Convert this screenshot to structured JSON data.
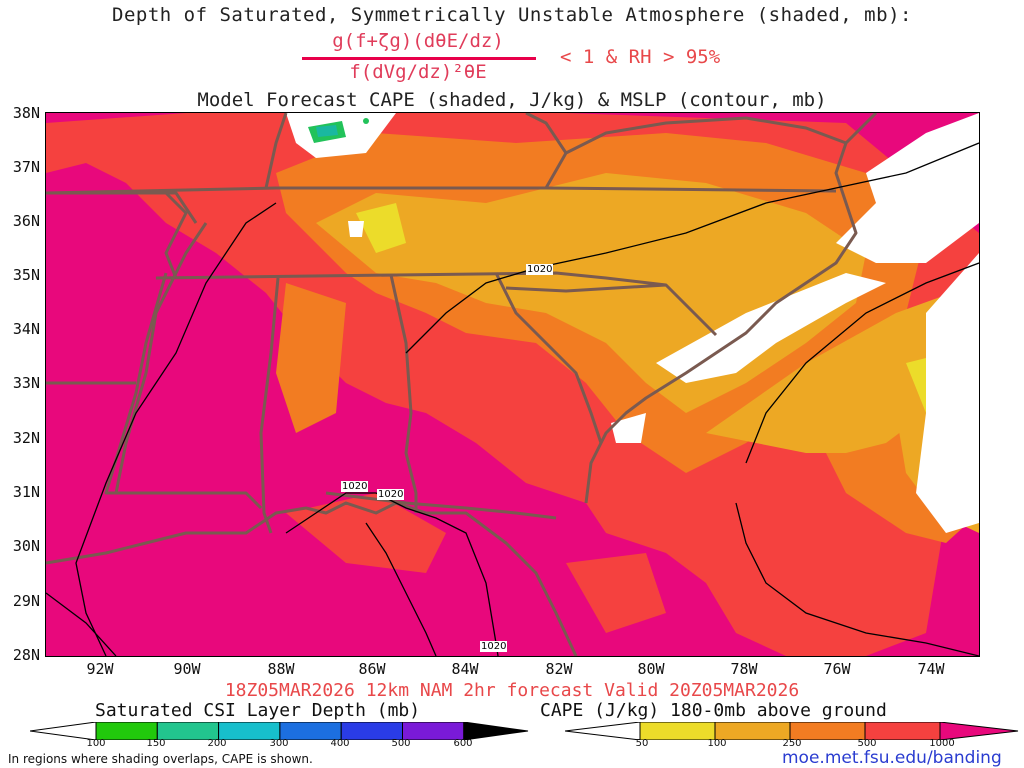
{
  "title": {
    "line1": "Depth of Saturated, Symmetrically Unstable Atmosphere (shaded, mb):",
    "formula_numerator": "g(f+ζg)(dθE/dz)",
    "formula_denominator": "f(dVg/dz)²θE",
    "formula_condition": "< 1 & RH > 95%",
    "line2": "Model Forecast CAPE (shaded, J/kg) & MSLP (contour, mb)"
  },
  "map": {
    "lat_labels": [
      "38N",
      "37N",
      "36N",
      "35N",
      "34N",
      "33N",
      "32N",
      "31N",
      "30N",
      "29N",
      "28N"
    ],
    "lon_labels": [
      "92W",
      "90W",
      "88W",
      "86W",
      "84W",
      "82W",
      "80W",
      "78W",
      "76W",
      "74W"
    ],
    "isobar_labels": [
      "1020",
      "1020",
      "1020",
      "1020"
    ],
    "colors": {
      "cape_1000plus": "#e8087c",
      "cape_500": "#f5413f",
      "cape_250": "#f27c22",
      "cape_100": "#eda824",
      "cape_50": "#ecdc2a",
      "csi_green": "#22c25a",
      "csi_teal": "#1ab8a0",
      "state_lines": "#7a5a50",
      "isobar": "#000000"
    }
  },
  "footer": {
    "valid": "18Z05MAR2026 12km NAM 2hr forecast Valid 20Z05MAR2026",
    "csi_bar_title": "Saturated CSI Layer Depth (mb)",
    "csi_ticks": [
      "100",
      "150",
      "200",
      "300",
      "400",
      "500",
      "600"
    ],
    "csi_colors": [
      "#ffffff",
      "#21c90c",
      "#22c58e",
      "#17bfcc",
      "#1c6fe0",
      "#2a3ce6",
      "#7a1ad8",
      "#000000"
    ],
    "cape_bar_title": "CAPE (J/kg) 180-0mb above ground",
    "cape_ticks": [
      "50",
      "100",
      "250",
      "500",
      "1000"
    ],
    "cape_colors": [
      "#ffffff",
      "#ecdc2a",
      "#eda824",
      "#f27c22",
      "#f5413f",
      "#e8087c"
    ],
    "footnote": "In regions where shading overlaps, CAPE is shown.",
    "url": "moe.met.fsu.edu/banding"
  }
}
